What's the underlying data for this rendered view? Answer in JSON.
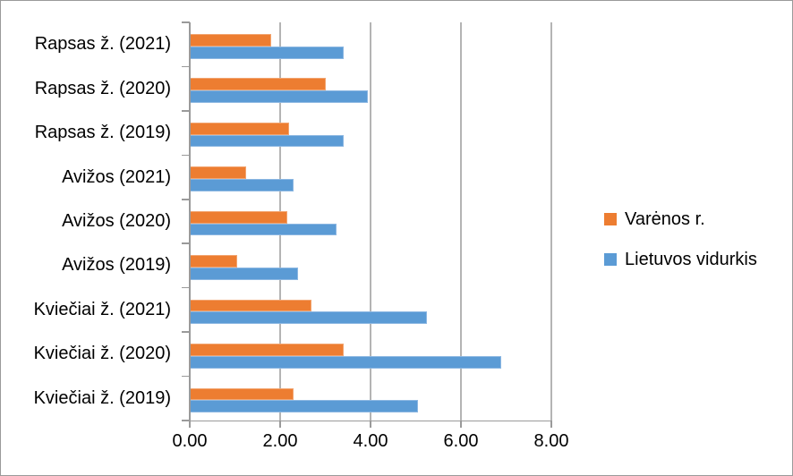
{
  "figure": {
    "background": "#FFFFFF",
    "border_color": "#9A9A9A"
  },
  "chart_data": {
    "type": "bar",
    "orientation": "horizontal",
    "title": "",
    "xlabel": "",
    "ylabel": "",
    "grid": true,
    "gridline_color": "#B4B4B4",
    "axis_color": "#9A9A9A",
    "legend_position": "right",
    "categories": [
      "Rapsas ž. (2021)",
      "Rapsas ž. (2020)",
      "Rapsas ž. (2019)",
      "Avižos (2021)",
      "Avižos (2020)",
      "Avižos (2019)",
      "Kviečiai ž. (2021)",
      "Kviečiai ž. (2020)",
      "Kviečiai ž. (2019)"
    ],
    "series": [
      {
        "name": "Varėnos r.",
        "color": "#ED7D31",
        "values": [
          1.8,
          3.0,
          2.2,
          1.25,
          2.15,
          1.05,
          2.7,
          3.4,
          2.3
        ]
      },
      {
        "name": "Lietuvos vidurkis",
        "color": "#5B9BD5",
        "values": [
          3.4,
          3.95,
          3.4,
          2.3,
          3.25,
          2.4,
          5.25,
          6.9,
          5.05
        ]
      }
    ],
    "x_axis": {
      "min": 0,
      "max": 8,
      "tick_step": 2,
      "tick_labels": [
        "0.00",
        "2.00",
        "4.00",
        "6.00",
        "8.00"
      ]
    }
  }
}
